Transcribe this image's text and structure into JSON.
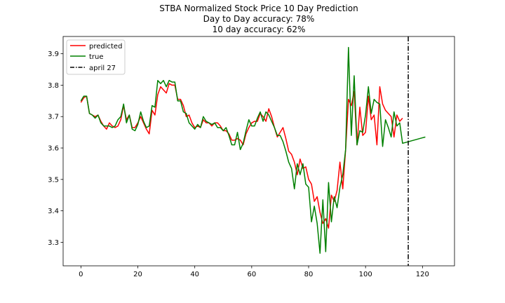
{
  "chart_data": {
    "type": "line",
    "title_lines": [
      "STBA Normalized Stock Price 10 Day Prediction",
      "Day to Day accuracy: 78%",
      "10 day accuracy: 62%"
    ],
    "xlabel": "",
    "ylabel": "",
    "xlim": [
      -6.25,
      131.25
    ],
    "ylim": [
      3.225,
      3.955
    ],
    "xticks": [
      0,
      20,
      40,
      60,
      80,
      100,
      120
    ],
    "yticks": [
      3.3,
      3.4,
      3.5,
      3.6,
      3.7,
      3.8,
      3.9
    ],
    "grid": false,
    "legend_position": "top-left",
    "series": [
      {
        "name": "predicted",
        "color": "#ff0000",
        "x_start": 0,
        "values": [
          3.745,
          3.76,
          3.765,
          3.71,
          3.705,
          3.7,
          3.705,
          3.685,
          3.67,
          3.66,
          3.68,
          3.67,
          3.665,
          3.67,
          3.69,
          3.735,
          3.69,
          3.705,
          3.665,
          3.665,
          3.68,
          3.7,
          3.68,
          3.66,
          3.645,
          3.72,
          3.705,
          3.77,
          3.795,
          3.785,
          3.775,
          3.805,
          3.8,
          3.8,
          3.755,
          3.755,
          3.735,
          3.7,
          3.705,
          3.68,
          3.665,
          3.67,
          3.665,
          3.69,
          3.68,
          3.68,
          3.67,
          3.68,
          3.68,
          3.67,
          3.655,
          3.655,
          3.645,
          3.625,
          3.625,
          3.63,
          3.625,
          3.61,
          3.645,
          3.665,
          3.68,
          3.685,
          3.685,
          3.71,
          3.7,
          3.685,
          3.725,
          3.7,
          3.665,
          3.635,
          3.65,
          3.665,
          3.63,
          3.59,
          3.58,
          3.555,
          3.515,
          3.565,
          3.535,
          3.54,
          3.5,
          3.485,
          3.43,
          3.445,
          3.395,
          3.36,
          3.375,
          3.345,
          3.45,
          3.43,
          3.465,
          3.555,
          3.47,
          3.595,
          3.755,
          3.735,
          3.78,
          3.61,
          3.73,
          3.64,
          3.65,
          3.765,
          3.69,
          3.705,
          3.61,
          3.795,
          3.74,
          3.72,
          3.71,
          3.7,
          3.635,
          3.705,
          3.685,
          3.695
        ]
      },
      {
        "name": "true",
        "color": "#008000",
        "x_start": 0,
        "values": [
          3.75,
          3.765,
          3.765,
          3.71,
          3.705,
          3.695,
          3.705,
          3.68,
          3.67,
          3.67,
          3.67,
          3.665,
          3.67,
          3.69,
          3.7,
          3.74,
          3.68,
          3.705,
          3.66,
          3.655,
          3.675,
          3.715,
          3.685,
          3.665,
          3.67,
          3.735,
          3.73,
          3.815,
          3.805,
          3.815,
          3.795,
          3.815,
          3.81,
          3.81,
          3.75,
          3.75,
          3.715,
          3.71,
          3.68,
          3.67,
          3.66,
          3.675,
          3.665,
          3.7,
          3.685,
          3.68,
          3.675,
          3.68,
          3.665,
          3.665,
          3.655,
          3.665,
          3.64,
          3.61,
          3.61,
          3.65,
          3.595,
          3.615,
          3.655,
          3.69,
          3.67,
          3.67,
          3.695,
          3.715,
          3.685,
          3.715,
          3.705,
          3.685,
          3.665,
          3.64,
          3.64,
          3.62,
          3.59,
          3.555,
          3.535,
          3.47,
          3.55,
          3.515,
          3.55,
          3.485,
          3.475,
          3.365,
          3.415,
          3.36,
          3.265,
          3.435,
          3.27,
          3.49,
          3.365,
          3.445,
          3.41,
          3.475,
          3.515,
          3.595,
          3.92,
          3.64,
          3.83,
          3.61,
          3.655,
          3.65,
          3.705,
          3.795,
          3.71,
          3.755,
          3.745,
          3.74,
          3.605,
          3.69,
          3.665,
          3.635,
          3.715,
          3.67,
          3.68,
          3.615,
          3.6175,
          3.62,
          3.6225,
          3.625,
          3.6275,
          3.63,
          3.6325,
          3.635
        ]
      }
    ],
    "vline": {
      "name": "april 27",
      "x": 115,
      "color": "#000000"
    }
  }
}
